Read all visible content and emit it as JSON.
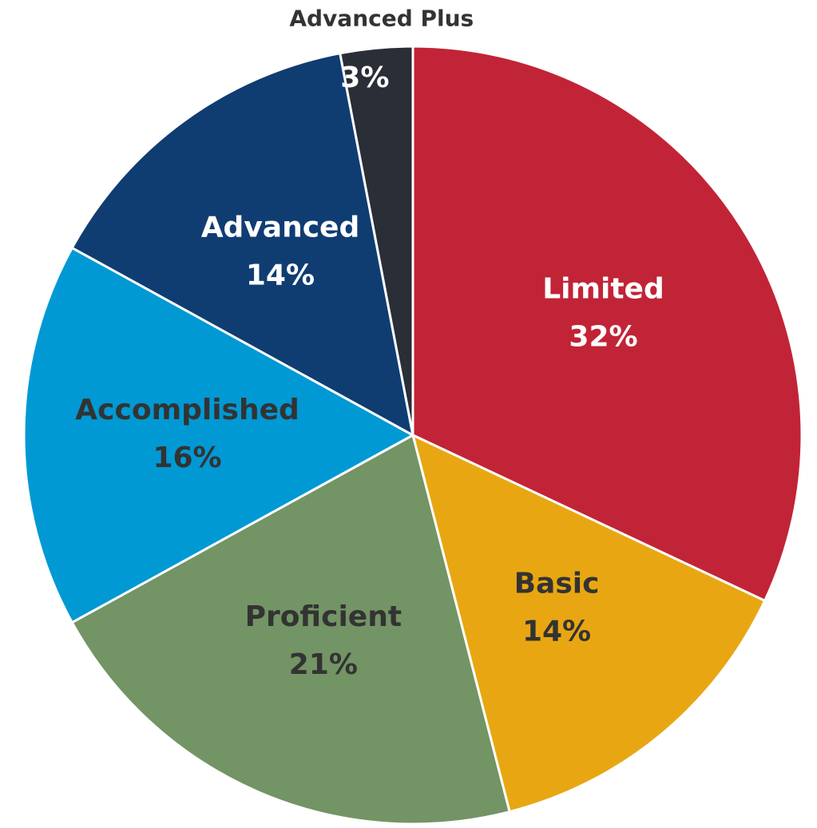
{
  "chart_data": {
    "type": "pie",
    "categories": [
      "Limited",
      "Basic",
      "Proficient",
      "Accomplished",
      "Advanced",
      "Advanced Plus"
    ],
    "values": [
      32,
      14,
      21,
      16,
      14,
      3
    ],
    "value_labels": [
      "32%",
      "14%",
      "21%",
      "16%",
      "14%",
      "3%"
    ],
    "colors": [
      "#c12436",
      "#e8a712",
      "#739465",
      "#0099d4",
      "#0f3d72",
      "#2a2e36"
    ],
    "label_colors": [
      "#ffffff",
      "#333333",
      "#333333",
      "#333333",
      "#ffffff",
      "#ffffff"
    ]
  }
}
